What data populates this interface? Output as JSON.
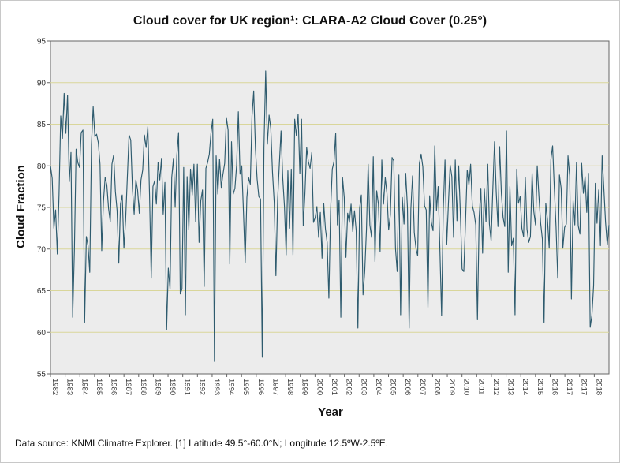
{
  "chart_data": {
    "type": "line",
    "title": "Cloud cover for UK region¹: CLARA-A2 Cloud Cover (0.25°)",
    "xlabel": "Year",
    "ylabel": "Cloud Fraction",
    "ylim": [
      55,
      95
    ],
    "xlim": [
      1982,
      2019
    ],
    "yticks": [
      55,
      60,
      65,
      70,
      75,
      80,
      85,
      90,
      95
    ],
    "xticks": [
      "1982",
      "1983",
      "1984",
      "1985",
      "1986",
      "1987",
      "1988",
      "1989",
      "1990",
      "1991",
      "1992",
      "1993",
      "1994",
      "1995",
      "1996",
      "1997",
      "1998",
      "1999",
      "2000",
      "2001",
      "2002",
      "2003",
      "2004",
      "2005",
      "2006",
      "2007",
      "2008",
      "2009",
      "2010",
      "2011",
      "2012",
      "2013",
      "2014",
      "2015",
      "2016",
      "2017",
      "2017",
      "2018"
    ],
    "grid": true,
    "series": [
      {
        "name": "CLARA-A2 Cloud Cover (0.25°)",
        "color": "#2e5b6e",
        "start_year": 1982.0,
        "values": [
          80.0,
          78.5,
          72.5,
          74.7,
          69.4,
          76.5,
          86.0,
          83.3,
          88.7,
          83.9,
          88.5,
          78.1,
          81.6,
          61.8,
          69.8,
          82.0,
          80.4,
          79.8,
          84.0,
          84.3,
          61.2,
          71.5,
          70.4,
          67.2,
          82.6,
          87.1,
          83.5,
          83.8,
          82.8,
          80.2,
          69.8,
          75.7,
          78.6,
          77.7,
          74.9,
          73.3,
          80.2,
          81.3,
          76.9,
          74.6,
          68.3,
          75.4,
          76.5,
          70.1,
          73.5,
          78.6,
          83.7,
          83.1,
          77.2,
          74.2,
          78.3,
          77.1,
          74.3,
          78.3,
          79.5,
          83.7,
          82.2,
          84.7,
          76.5,
          66.5,
          77.5,
          78.2,
          75.4,
          80.4,
          78.3,
          80.9,
          74.2,
          78.0,
          60.3,
          67.7,
          65.2,
          78.6,
          80.9,
          75.0,
          81.3,
          84.0,
          64.6,
          65.2,
          79.8,
          62.1,
          78.7,
          72.3,
          79.6,
          76.5,
          80.2,
          73.3,
          80.2,
          70.8,
          75.8,
          77.1,
          65.5,
          79.7,
          80.4,
          81.4,
          84.0,
          85.6,
          56.5,
          81.2,
          76.6,
          80.8,
          77.4,
          79.0,
          80.3,
          85.8,
          84.3,
          68.2,
          82.9,
          76.6,
          77.3,
          80.1,
          86.5,
          79.0,
          80.0,
          74.4,
          68.4,
          76.2,
          78.6,
          77.8,
          86.0,
          89.0,
          82.1,
          78.4,
          76.3,
          76.0,
          57.0,
          82.2,
          91.4,
          82.6,
          86.1,
          84.5,
          79.2,
          75.6,
          66.8,
          75.9,
          80.2,
          84.2,
          78.5,
          75.1,
          69.3,
          79.4,
          72.5,
          79.6,
          69.3,
          85.6,
          83.6,
          86.2,
          79.1,
          85.6,
          72.8,
          76.7,
          82.2,
          80.5,
          79.7,
          81.6,
          73.2,
          73.8,
          75.1,
          71.4,
          74.4,
          68.9,
          75.5,
          72.4,
          70.8,
          64.1,
          74.6,
          79.6,
          80.5,
          83.9,
          72.9,
          75.9,
          61.8,
          78.6,
          76.2,
          69.0,
          74.3,
          73.2,
          75.4,
          72.1,
          74.6,
          72.2,
          60.5,
          74.9,
          76.5,
          64.5,
          67.3,
          72.3,
          80.2,
          72.9,
          71.4,
          81.1,
          68.5,
          77.0,
          75.4,
          69.7,
          80.7,
          75.4,
          78.6,
          76.7,
          72.3,
          74.1,
          81.0,
          80.6,
          70.1,
          67.3,
          78.9,
          62.1,
          76.2,
          73.0,
          79.1,
          75.0,
          60.5,
          74.8,
          78.8,
          72.0,
          70.1,
          69.2,
          80.3,
          81.4,
          79.9,
          75.2,
          74.7,
          63.0,
          76.4,
          73.2,
          72.2,
          82.4,
          74.6,
          77.5,
          70.0,
          62.0,
          74.9,
          80.7,
          70.5,
          75.5,
          80.1,
          78.7,
          71.4,
          80.7,
          73.4,
          80.0,
          74.2,
          67.6,
          67.3,
          73.2,
          79.5,
          77.7,
          80.2,
          75.2,
          74.4,
          72.9,
          61.5,
          73.8,
          77.3,
          69.5,
          77.3,
          73.3,
          80.2,
          73.0,
          71.0,
          77.2,
          82.9,
          76.8,
          72.7,
          82.3,
          76.7,
          73.8,
          72.7,
          84.2,
          67.2,
          77.5,
          70.4,
          71.3,
          62.1,
          79.6,
          75.5,
          76.3,
          72.5,
          71.5,
          78.6,
          72.4,
          70.8,
          71.5,
          79.1,
          74.5,
          72.9,
          80.0,
          76.3,
          73.1,
          71.2,
          61.2,
          75.5,
          73.5,
          70.1,
          80.8,
          82.4,
          77.3,
          72.7,
          66.5,
          78.9,
          77.3,
          70.1,
          72.6,
          73.0,
          81.2,
          78.8,
          64.0,
          75.8,
          72.9,
          80.4,
          72.8,
          71.8,
          80.3,
          76.7,
          78.7,
          74.4,
          79.1,
          60.6,
          62.0,
          65.6,
          77.9,
          73.1,
          77.1,
          70.4,
          81.2,
          77.3,
          73.2,
          70.5,
          72.9
        ]
      }
    ]
  },
  "footnote": "Data source: KNMI Climatre Explorer. [1] Latitude 49.5°-60.0°N; Longitude 12.5ºW-2.5ºE.",
  "colors": {
    "plot_bg": "#ececec",
    "grid": "#d9d69a",
    "line": "#2e5b6e"
  }
}
